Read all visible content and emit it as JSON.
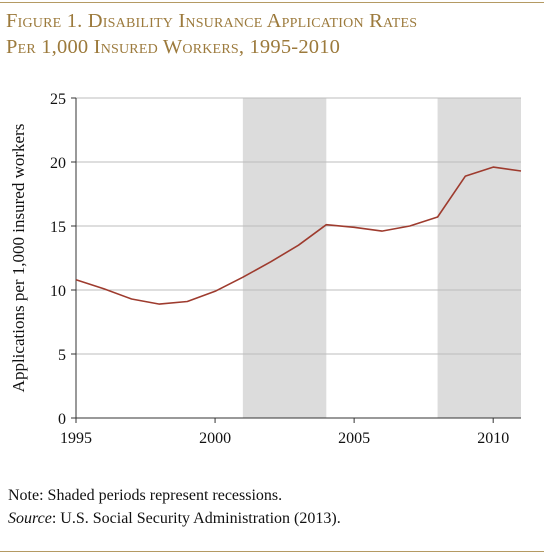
{
  "figure": {
    "title_line1": "Figure 1. Disability Insurance Application Rates",
    "title_line2": "Per 1,000 Insured Workers, 1995-2010"
  },
  "notes": {
    "note": "Note: Shaded periods represent recessions.",
    "source_label": "Source",
    "source_text": ": U.S. Social Security Administration (2013)."
  },
  "chart_data": {
    "type": "line",
    "title": "",
    "ylabel": "Applications per 1,000 insured workers",
    "xlabel": "",
    "xlim": [
      1995,
      2011
    ],
    "ylim": [
      0,
      25
    ],
    "x_ticks": [
      1995,
      2000,
      2005,
      2010
    ],
    "y_ticks": [
      0,
      5,
      10,
      15,
      20,
      25
    ],
    "grid": "horizontal",
    "recessions": [
      [
        2001,
        2004
      ],
      [
        2008,
        2011
      ]
    ],
    "series": [
      {
        "color": "#9e3b2e",
        "x": [
          1995,
          1996,
          1997,
          1998,
          1999,
          2000,
          2001,
          2002,
          2003,
          2004,
          2005,
          2006,
          2007,
          2008,
          2009,
          2010,
          2011
        ],
        "y": [
          10.8,
          10.1,
          9.3,
          8.9,
          9.1,
          9.9,
          11.0,
          12.2,
          13.5,
          15.1,
          14.9,
          14.6,
          15.0,
          15.7,
          18.9,
          19.6,
          19.3
        ]
      }
    ],
    "shade_color": "#dcdcdc",
    "grid_color": "#bdbdbd"
  }
}
